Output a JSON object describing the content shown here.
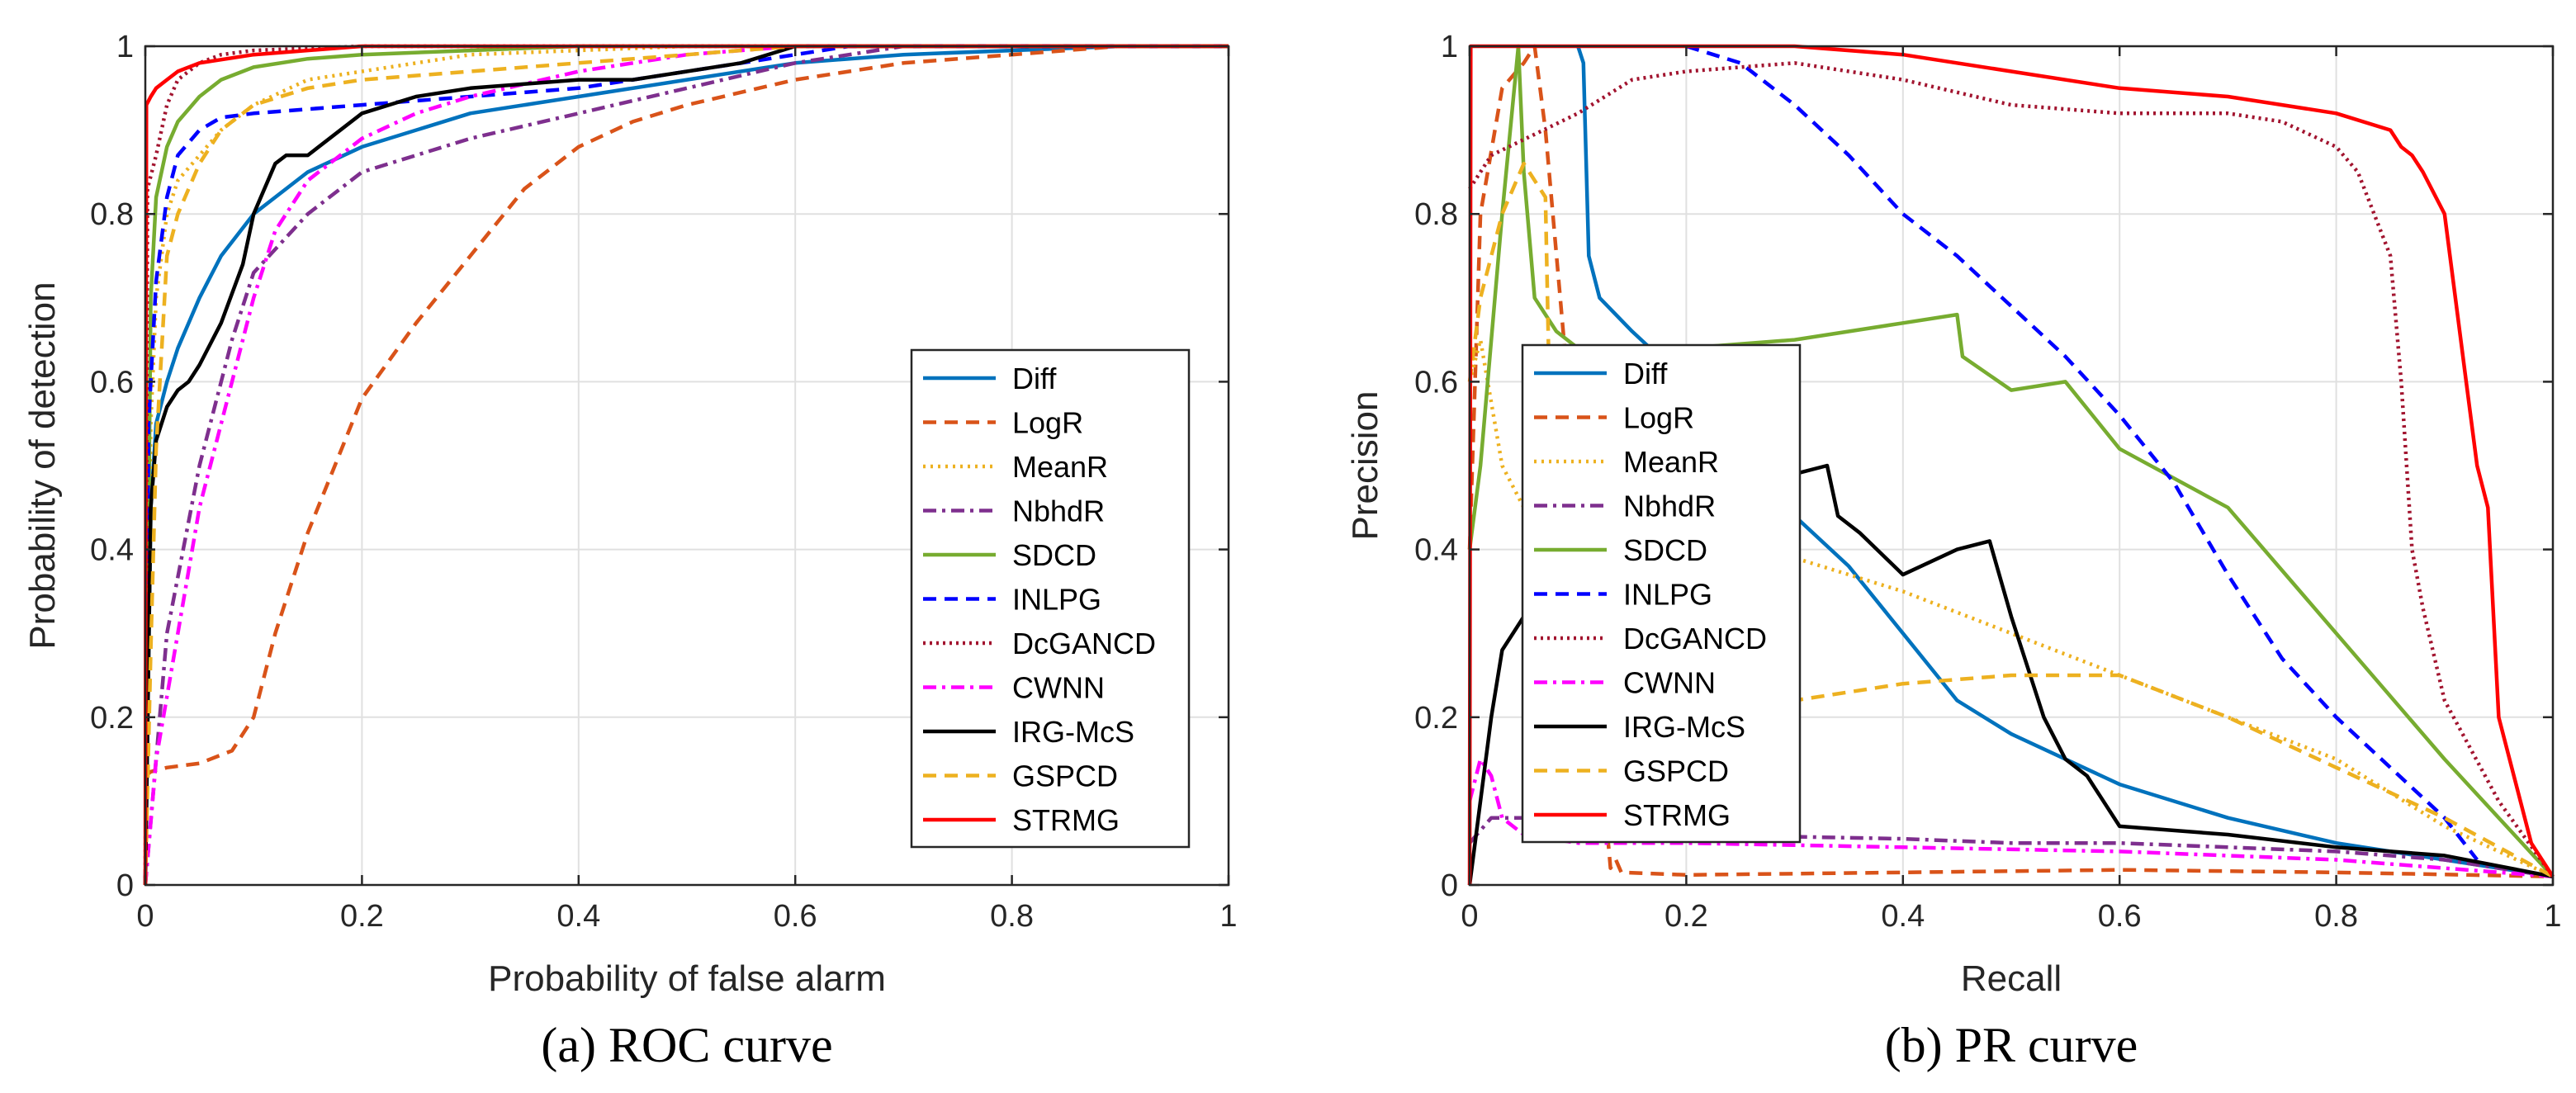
{
  "series_styles": [
    {
      "name": "Diff",
      "color": "#0072BD",
      "dash": ""
    },
    {
      "name": "LogR",
      "color": "#D95319",
      "dash": "16 10"
    },
    {
      "name": "MeanR",
      "color": "#EDB120",
      "dash": "3 6"
    },
    {
      "name": "NbhdR",
      "color": "#7E2F8E",
      "dash": "16 7 4 7"
    },
    {
      "name": "SDCD",
      "color": "#77AC30",
      "dash": ""
    },
    {
      "name": "INLPG",
      "color": "#0000FF",
      "dash": "16 10"
    },
    {
      "name": "DcGANCD",
      "color": "#A2142F",
      "dash": "3 5"
    },
    {
      "name": "CWNN",
      "color": "#FF00FF",
      "dash": "16 7 4 7"
    },
    {
      "name": "IRG-McS",
      "color": "#000000",
      "dash": ""
    },
    {
      "name": "GSPCD",
      "color": "#EDB120",
      "dash": "16 10"
    },
    {
      "name": "STRMG",
      "color": "#FF0000",
      "dash": ""
    }
  ],
  "chart_data": [
    {
      "type": "line",
      "title": "(a) ROC  curve",
      "xlabel": "Probability of false alarm",
      "ylabel": "Probability of detection",
      "xlim": [
        0,
        1
      ],
      "ylim": [
        0,
        1
      ],
      "xticks": [
        "0",
        "0.2",
        "0.4",
        "0.6",
        "0.8",
        "1"
      ],
      "yticks": [
        "0",
        "0.2",
        "0.4",
        "0.6",
        "0.8",
        "1"
      ],
      "grid": true,
      "legend_position": "lower-right",
      "series": [
        {
          "name": "Diff",
          "x": [
            0,
            0.005,
            0.01,
            0.02,
            0.03,
            0.05,
            0.07,
            0.1,
            0.15,
            0.2,
            0.3,
            0.4,
            0.5,
            0.6,
            0.7,
            0.8,
            0.9,
            1
          ],
          "y": [
            0,
            0.45,
            0.55,
            0.6,
            0.64,
            0.7,
            0.75,
            0.8,
            0.85,
            0.88,
            0.92,
            0.94,
            0.96,
            0.98,
            0.99,
            0.995,
            1,
            1
          ]
        },
        {
          "name": "LogR",
          "x": [
            0,
            0.005,
            0.02,
            0.05,
            0.08,
            0.1,
            0.12,
            0.15,
            0.2,
            0.25,
            0.3,
            0.35,
            0.4,
            0.45,
            0.5,
            0.6,
            0.7,
            0.8,
            0.9,
            1
          ],
          "y": [
            0.13,
            0.135,
            0.14,
            0.145,
            0.16,
            0.2,
            0.3,
            0.42,
            0.58,
            0.67,
            0.75,
            0.83,
            0.88,
            0.91,
            0.93,
            0.96,
            0.98,
            0.99,
            1,
            1
          ]
        },
        {
          "name": "MeanR",
          "x": [
            0,
            0.005,
            0.01,
            0.02,
            0.03,
            0.05,
            0.07,
            0.1,
            0.15,
            0.2,
            0.3,
            0.4,
            0.5,
            1
          ],
          "y": [
            0,
            0.55,
            0.7,
            0.8,
            0.84,
            0.87,
            0.9,
            0.93,
            0.96,
            0.97,
            0.99,
            0.995,
            1,
            1
          ]
        },
        {
          "name": "NbhdR",
          "x": [
            0,
            0.02,
            0.05,
            0.08,
            0.1,
            0.15,
            0.2,
            0.3,
            0.4,
            0.5,
            0.6,
            0.7,
            1
          ],
          "y": [
            0,
            0.3,
            0.5,
            0.65,
            0.73,
            0.8,
            0.85,
            0.89,
            0.92,
            0.95,
            0.98,
            1,
            1
          ]
        },
        {
          "name": "SDCD",
          "x": [
            0,
            0.005,
            0.01,
            0.02,
            0.03,
            0.05,
            0.07,
            0.1,
            0.15,
            0.2,
            0.3,
            0.4,
            1
          ],
          "y": [
            0,
            0.7,
            0.82,
            0.88,
            0.91,
            0.94,
            0.96,
            0.975,
            0.985,
            0.99,
            0.995,
            1,
            1
          ]
        },
        {
          "name": "INLPG",
          "x": [
            0,
            0.003,
            0.01,
            0.02,
            0.03,
            0.05,
            0.07,
            0.1,
            0.15,
            0.2,
            0.3,
            0.4,
            0.5,
            0.6,
            0.65,
            1
          ],
          "y": [
            0,
            0.55,
            0.72,
            0.82,
            0.87,
            0.9,
            0.915,
            0.92,
            0.925,
            0.93,
            0.94,
            0.95,
            0.97,
            0.99,
            1,
            1
          ]
        },
        {
          "name": "DcGANCD",
          "x": [
            0,
            0.002,
            0.01,
            0.02,
            0.03,
            0.05,
            0.07,
            0.1,
            0.2,
            0.3,
            1
          ],
          "y": [
            0,
            0.83,
            0.87,
            0.93,
            0.96,
            0.98,
            0.99,
            0.995,
            1,
            1,
            1
          ]
        },
        {
          "name": "CWNN",
          "x": [
            0,
            0.01,
            0.03,
            0.05,
            0.08,
            0.1,
            0.12,
            0.15,
            0.2,
            0.25,
            0.3,
            0.4,
            0.5,
            0.6,
            1
          ],
          "y": [
            0,
            0.15,
            0.3,
            0.45,
            0.6,
            0.7,
            0.78,
            0.84,
            0.89,
            0.92,
            0.94,
            0.97,
            0.99,
            1,
            1
          ]
        },
        {
          "name": "IRG-McS",
          "x": [
            0,
            0.005,
            0.01,
            0.02,
            0.03,
            0.04,
            0.05,
            0.07,
            0.09,
            0.1,
            0.12,
            0.13,
            0.15,
            0.17,
            0.2,
            0.25,
            0.3,
            0.35,
            0.4,
            0.45,
            0.5,
            0.55,
            0.6,
            0.65,
            1
          ],
          "y": [
            0,
            0.45,
            0.53,
            0.57,
            0.59,
            0.6,
            0.62,
            0.67,
            0.74,
            0.8,
            0.86,
            0.87,
            0.87,
            0.89,
            0.92,
            0.94,
            0.95,
            0.955,
            0.96,
            0.96,
            0.97,
            0.98,
            1,
            1,
            1
          ]
        },
        {
          "name": "GSPCD",
          "x": [
            0,
            0.005,
            0.01,
            0.02,
            0.03,
            0.05,
            0.07,
            0.1,
            0.15,
            0.2,
            0.3,
            0.4,
            0.5,
            0.6,
            1
          ],
          "y": [
            0,
            0.28,
            0.52,
            0.75,
            0.8,
            0.86,
            0.9,
            0.93,
            0.95,
            0.96,
            0.97,
            0.98,
            0.99,
            1,
            1
          ]
        },
        {
          "name": "STRMG",
          "x": [
            0,
            0.001,
            0.005,
            0.01,
            0.02,
            0.03,
            0.05,
            0.1,
            0.2,
            1
          ],
          "y": [
            0,
            0.93,
            0.94,
            0.95,
            0.96,
            0.97,
            0.98,
            0.99,
            1,
            1
          ]
        }
      ]
    },
    {
      "type": "line",
      "title": "(b) PR curve",
      "xlabel": "Recall",
      "ylabel": "Precision",
      "xlim": [
        0,
        1
      ],
      "ylim": [
        0,
        1
      ],
      "xticks": [
        "0",
        "0.2",
        "0.4",
        "0.6",
        "0.8",
        "1"
      ],
      "yticks": [
        "0",
        "0.2",
        "0.4",
        "0.6",
        "0.8",
        "1"
      ],
      "grid": true,
      "legend_position": "lower-left",
      "series": [
        {
          "name": "Diff",
          "x": [
            0.1,
            0.105,
            0.11,
            0.12,
            0.15,
            0.2,
            0.25,
            0.3,
            0.35,
            0.4,
            0.45,
            0.5,
            0.6,
            0.7,
            0.8,
            0.9,
            1
          ],
          "y": [
            1,
            0.98,
            0.75,
            0.7,
            0.66,
            0.6,
            0.5,
            0.44,
            0.38,
            0.3,
            0.22,
            0.18,
            0.12,
            0.08,
            0.05,
            0.03,
            0.01
          ]
        },
        {
          "name": "LogR",
          "x": [
            0,
            0.01,
            0.03,
            0.05,
            0.06,
            0.065,
            0.07,
            0.13,
            0.135,
            0.14,
            0.2,
            0.4,
            0.6,
            0.8,
            1
          ],
          "y": [
            0.4,
            0.8,
            0.95,
            0.98,
            1,
            0.95,
            0.9,
            0.02,
            0.03,
            0.015,
            0.012,
            0.015,
            0.018,
            0.015,
            0.01
          ]
        },
        {
          "name": "MeanR",
          "x": [
            0,
            0.01,
            0.03,
            0.05,
            0.1,
            0.2,
            0.3,
            0.4,
            0.5,
            0.6,
            0.7,
            0.8,
            0.9,
            1
          ],
          "y": [
            0.6,
            0.65,
            0.5,
            0.45,
            0.42,
            0.4,
            0.39,
            0.35,
            0.3,
            0.25,
            0.2,
            0.15,
            0.07,
            0.01
          ]
        },
        {
          "name": "NbhdR",
          "x": [
            0,
            0.02,
            0.05,
            0.1,
            0.2,
            0.4,
            0.5,
            0.6,
            0.7,
            0.8,
            0.9,
            1
          ],
          "y": [
            0.05,
            0.08,
            0.08,
            0.07,
            0.06,
            0.055,
            0.05,
            0.05,
            0.045,
            0.04,
            0.03,
            0.01
          ]
        },
        {
          "name": "SDCD",
          "x": [
            0,
            0.01,
            0.03,
            0.045,
            0.05,
            0.06,
            0.08,
            0.1,
            0.2,
            0.3,
            0.4,
            0.45,
            0.455,
            0.5,
            0.55,
            0.6,
            0.7,
            0.8,
            0.9,
            1
          ],
          "y": [
            0.4,
            0.5,
            0.8,
            1,
            0.85,
            0.7,
            0.66,
            0.64,
            0.64,
            0.65,
            0.67,
            0.68,
            0.63,
            0.59,
            0.6,
            0.52,
            0.45,
            0.3,
            0.15,
            0.01
          ]
        },
        {
          "name": "INLPG",
          "x": [
            0.2,
            0.25,
            0.3,
            0.35,
            0.4,
            0.45,
            0.5,
            0.55,
            0.6,
            0.65,
            0.7,
            0.75,
            0.8,
            0.85,
            0.9,
            0.93
          ],
          "y": [
            1,
            0.98,
            0.93,
            0.87,
            0.8,
            0.75,
            0.69,
            0.63,
            0.56,
            0.48,
            0.37,
            0.27,
            0.2,
            0.14,
            0.08,
            0.03
          ]
        },
        {
          "name": "DcGANCD",
          "x": [
            0,
            0.02,
            0.1,
            0.15,
            0.2,
            0.3,
            0.4,
            0.5,
            0.6,
            0.7,
            0.75,
            0.8,
            0.82,
            0.85,
            0.86,
            0.87,
            0.88,
            0.9,
            0.95,
            1
          ],
          "y": [
            0.83,
            0.87,
            0.92,
            0.96,
            0.97,
            0.98,
            0.96,
            0.93,
            0.92,
            0.92,
            0.91,
            0.88,
            0.85,
            0.75,
            0.6,
            0.4,
            0.33,
            0.22,
            0.1,
            0.01
          ]
        },
        {
          "name": "CWNN",
          "x": [
            0,
            0.01,
            0.02,
            0.03,
            0.05,
            0.1,
            0.2,
            0.4,
            0.6,
            0.8,
            1
          ],
          "y": [
            0.1,
            0.15,
            0.13,
            0.08,
            0.06,
            0.05,
            0.05,
            0.045,
            0.04,
            0.03,
            0.01
          ]
        },
        {
          "name": "IRG-McS",
          "x": [
            0,
            0.02,
            0.03,
            0.05,
            0.1,
            0.2,
            0.3,
            0.33,
            0.34,
            0.36,
            0.4,
            0.45,
            0.48,
            0.5,
            0.53,
            0.55,
            0.57,
            0.6,
            0.7,
            0.8,
            0.9,
            1
          ],
          "y": [
            0,
            0.2,
            0.28,
            0.32,
            0.38,
            0.45,
            0.49,
            0.5,
            0.44,
            0.42,
            0.37,
            0.4,
            0.41,
            0.32,
            0.2,
            0.15,
            0.13,
            0.07,
            0.06,
            0.045,
            0.035,
            0.01
          ]
        },
        {
          "name": "GSPCD",
          "x": [
            0,
            0.01,
            0.03,
            0.05,
            0.07,
            0.075,
            0.08,
            0.1,
            0.2,
            0.3,
            0.4,
            0.5,
            0.6,
            0.7,
            0.8,
            0.9,
            1
          ],
          "y": [
            0.6,
            0.7,
            0.8,
            0.86,
            0.82,
            0.5,
            0.3,
            0.22,
            0.2,
            0.22,
            0.24,
            0.25,
            0.25,
            0.2,
            0.14,
            0.08,
            0.01
          ]
        },
        {
          "name": "STRMG",
          "x": [
            0,
            0.001,
            0.1,
            0.3,
            0.4,
            0.5,
            0.6,
            0.7,
            0.75,
            0.8,
            0.85,
            0.86,
            0.87,
            0.88,
            0.9,
            0.92,
            0.93,
            0.94,
            0.95,
            0.98,
            1
          ],
          "y": [
            0,
            1,
            1,
            1,
            0.99,
            0.97,
            0.95,
            0.94,
            0.93,
            0.92,
            0.9,
            0.88,
            0.87,
            0.85,
            0.8,
            0.6,
            0.5,
            0.45,
            0.2,
            0.05,
            0.01
          ]
        }
      ]
    }
  ]
}
